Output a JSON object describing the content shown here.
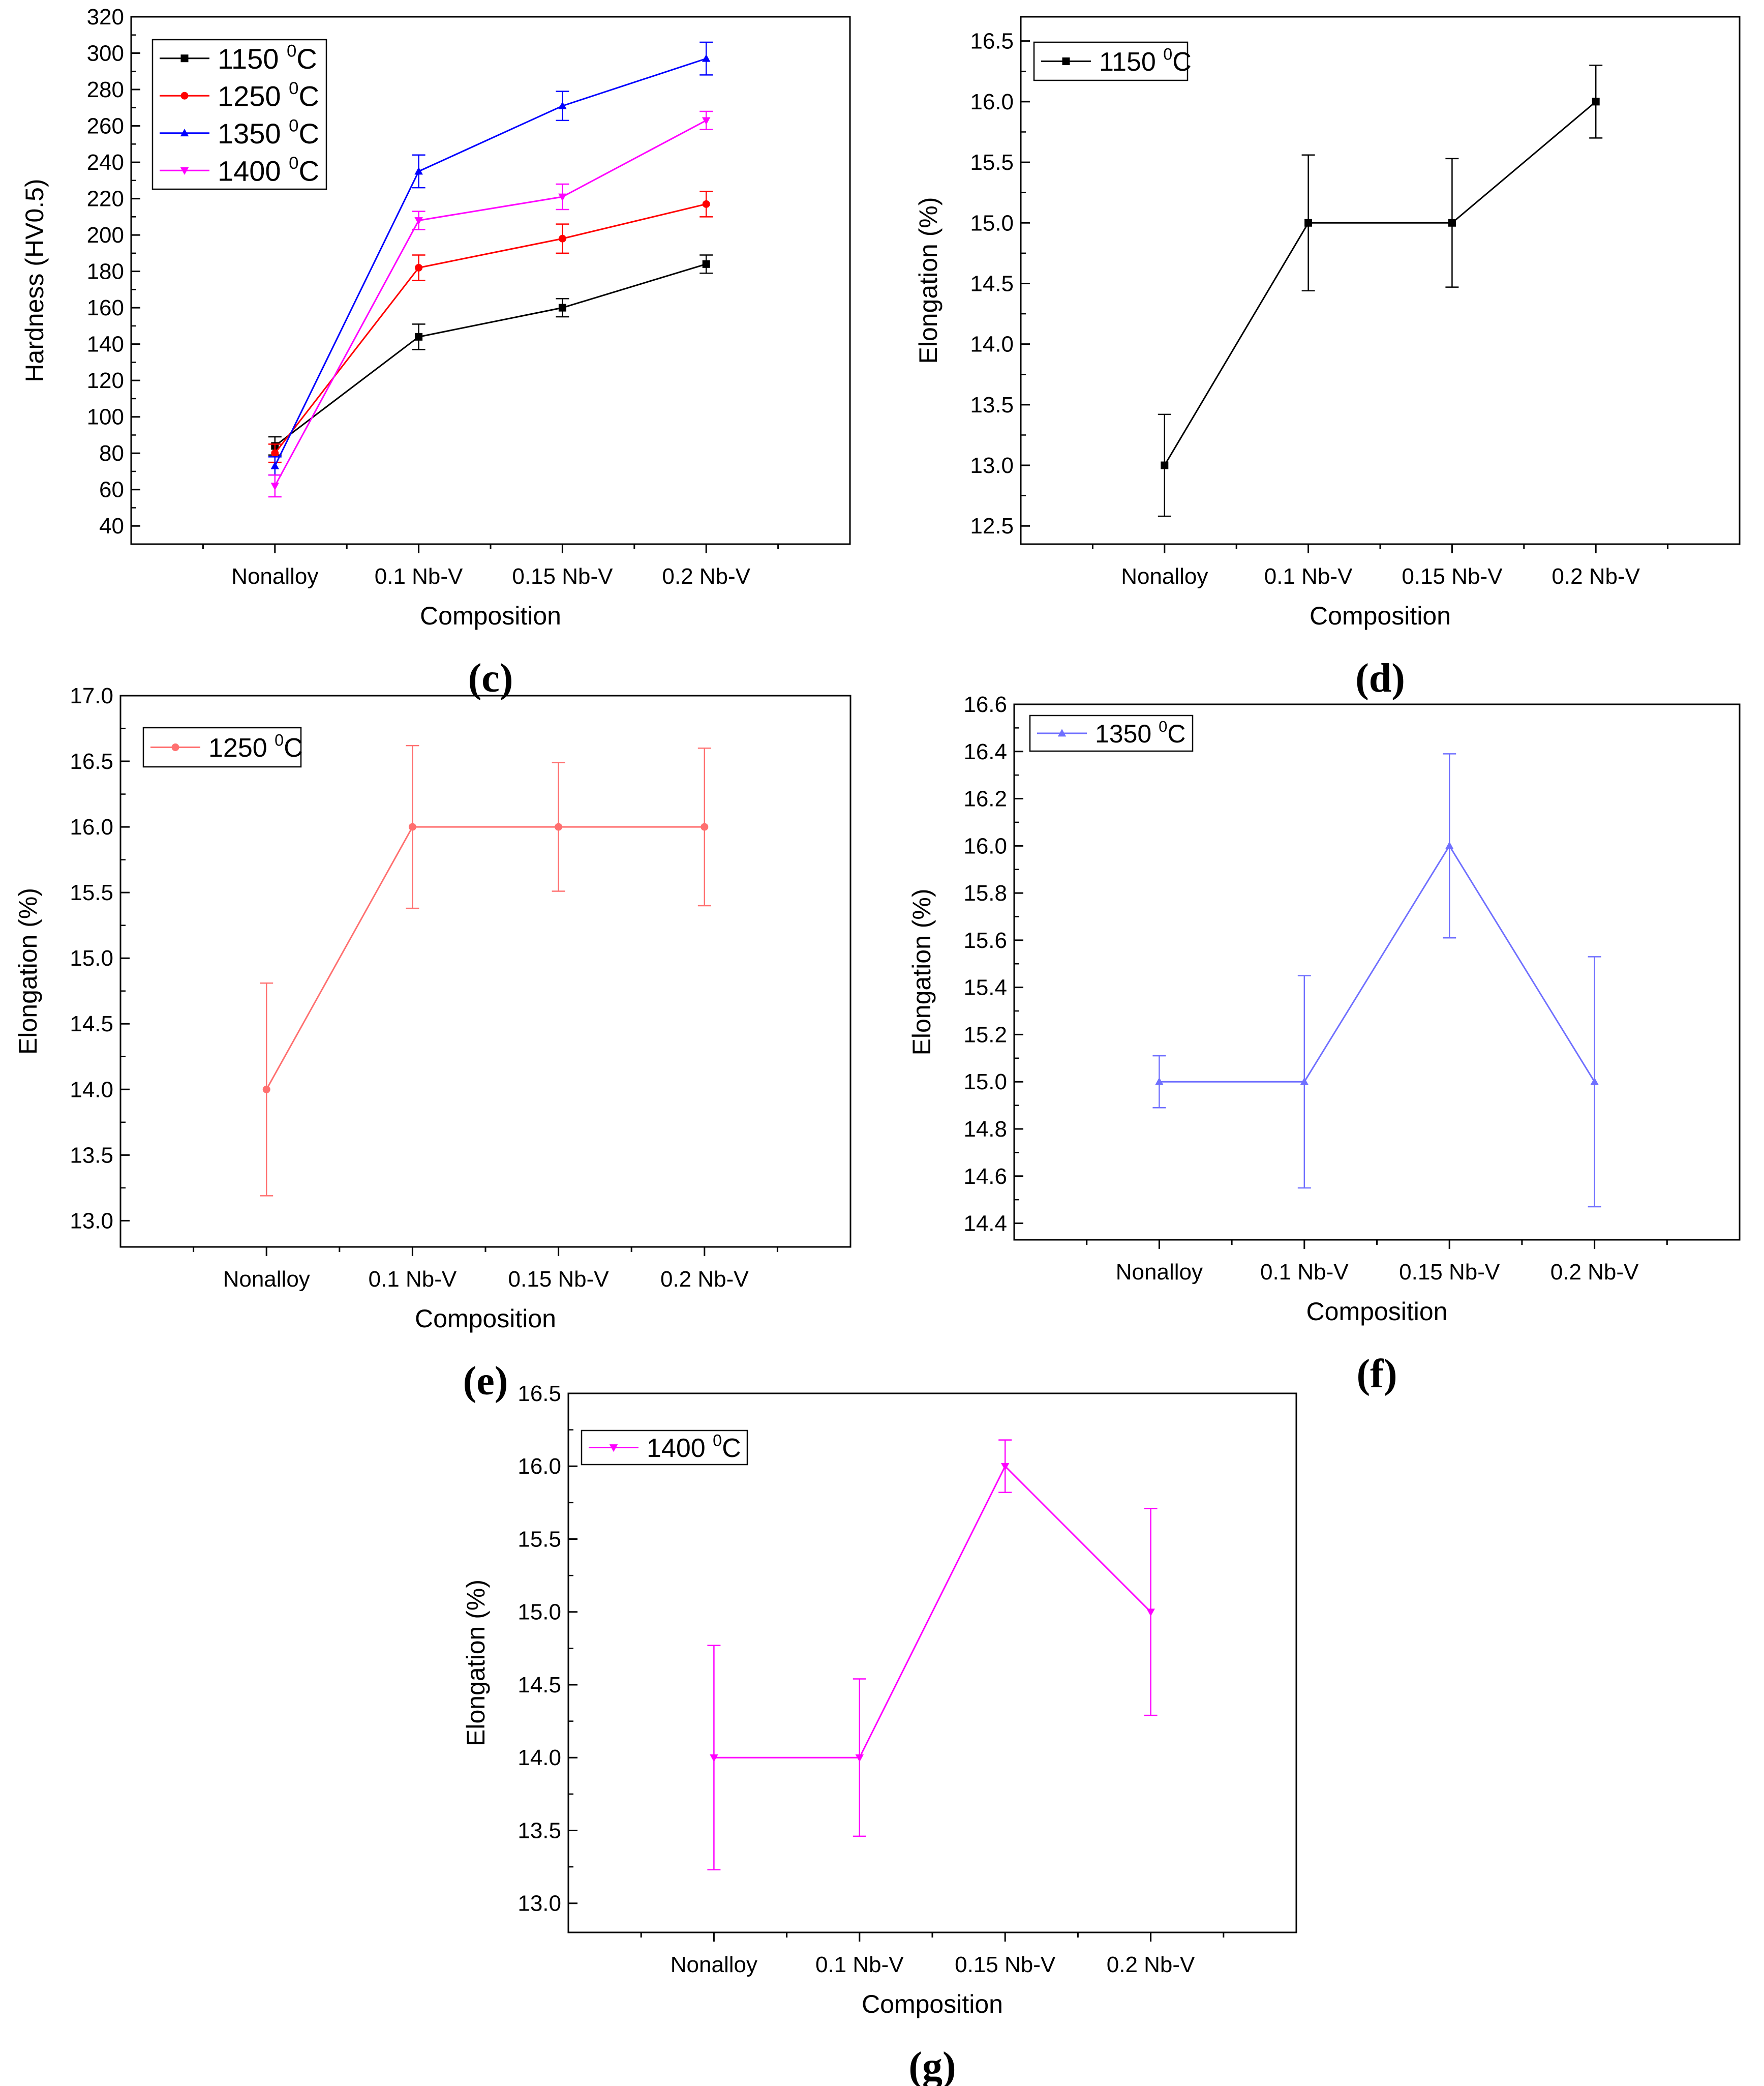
{
  "chart_data": [
    {
      "panel": "(c)",
      "type": "line",
      "categories": [
        "Nonalloy",
        "0.1 Nb-V",
        "0.15 Nb-V",
        "0.2 Nb-V"
      ],
      "xlabel": "Composition",
      "ylabel": "Hardness (HV0.5)",
      "ylim": [
        30,
        320
      ],
      "yticks": [
        40,
        60,
        80,
        100,
        120,
        140,
        160,
        180,
        200,
        220,
        240,
        260,
        280,
        300,
        320
      ],
      "legend_position": "top-left",
      "series": [
        {
          "name": "1150 ",
          "sup": "0",
          "unit": "C",
          "color": "#000000",
          "marker": "square",
          "values": [
            84,
            144,
            160,
            184
          ],
          "errors": [
            5,
            7,
            5,
            5
          ]
        },
        {
          "name": "1250 ",
          "sup": "0",
          "unit": "C",
          "color": "#ff0000",
          "marker": "circle",
          "values": [
            80,
            182,
            198,
            217
          ],
          "errors": [
            5,
            7,
            8,
            7
          ]
        },
        {
          "name": "1350 ",
          "sup": "0",
          "unit": "C",
          "color": "#0000ff",
          "marker": "triangle-up",
          "values": [
            73,
            235,
            271,
            297
          ],
          "errors": [
            5,
            9,
            8,
            9
          ]
        },
        {
          "name": "1400 ",
          "sup": "0",
          "unit": "C",
          "color": "#ff00ff",
          "marker": "triangle-down",
          "values": [
            62,
            208,
            221,
            263
          ],
          "errors": [
            6,
            5,
            7,
            5
          ]
        }
      ]
    },
    {
      "panel": "(d)",
      "type": "line",
      "categories": [
        "Nonalloy",
        "0.1 Nb-V",
        "0.15 Nb-V",
        "0.2 Nb-V"
      ],
      "xlabel": "Composition",
      "ylabel": "Elongation (%)",
      "ylim": [
        12.35,
        16.7
      ],
      "yticks": [
        12.5,
        13.0,
        13.5,
        14.0,
        14.5,
        15.0,
        15.5,
        16.0,
        16.5
      ],
      "legend_position": "top-left",
      "series": [
        {
          "name": "1150 ",
          "sup": "0",
          "unit": "C",
          "color": "#000000",
          "marker": "square",
          "values": [
            13.0,
            15.0,
            15.0,
            16.0
          ],
          "errors": [
            0.42,
            0.56,
            0.53,
            0.3
          ]
        }
      ]
    },
    {
      "panel": "(e)",
      "type": "line",
      "categories": [
        "Nonalloy",
        "0.1 Nb-V",
        "0.15 Nb-V",
        "0.2 Nb-V"
      ],
      "xlabel": "Composition",
      "ylabel": "Elongation (%)",
      "ylim": [
        12.8,
        17.0
      ],
      "yticks": [
        13.0,
        13.5,
        14.0,
        14.5,
        15.0,
        15.5,
        16.0,
        16.5,
        17.0
      ],
      "legend_position": "top-left",
      "series": [
        {
          "name": "1250 ",
          "sup": "0",
          "unit": "C",
          "color": "#ff7070",
          "marker": "circle",
          "values": [
            14.0,
            16.0,
            16.0,
            16.0
          ],
          "errors": [
            0.81,
            0.62,
            0.49,
            0.6
          ]
        }
      ]
    },
    {
      "panel": "(f)",
      "type": "line",
      "categories": [
        "Nonalloy",
        "0.1 Nb-V",
        "0.15 Nb-V",
        "0.2 Nb-V"
      ],
      "xlabel": "Composition",
      "ylabel": "Elongation (%)",
      "ylim": [
        14.33,
        16.6
      ],
      "yticks": [
        14.4,
        14.6,
        14.8,
        15.0,
        15.2,
        15.4,
        15.6,
        15.8,
        16.0,
        16.2,
        16.4,
        16.6
      ],
      "legend_position": "top-left",
      "series": [
        {
          "name": "1350 ",
          "sup": "0",
          "unit": "C",
          "color": "#7070ff",
          "marker": "triangle-up",
          "values": [
            15.0,
            15.0,
            16.0,
            15.0
          ],
          "errors": [
            0.11,
            0.45,
            0.39,
            0.53
          ]
        }
      ]
    },
    {
      "panel": "(g)",
      "type": "line",
      "categories": [
        "Nonalloy",
        "0.1 Nb-V",
        "0.15 Nb-V",
        "0.2 Nb-V"
      ],
      "xlabel": "Composition",
      "ylabel": "Elongation (%)",
      "ylim": [
        12.8,
        16.5
      ],
      "yticks": [
        13.0,
        13.5,
        14.0,
        14.5,
        15.0,
        15.5,
        16.0,
        16.5
      ],
      "legend_position": "top-left",
      "series": [
        {
          "name": "1400 ",
          "sup": "0",
          "unit": "C",
          "color": "#ff00ff",
          "marker": "triangle-down",
          "values": [
            14.0,
            14.0,
            16.0,
            15.0
          ],
          "errors": [
            0.77,
            0.54,
            0.18,
            0.71
          ]
        }
      ]
    }
  ]
}
